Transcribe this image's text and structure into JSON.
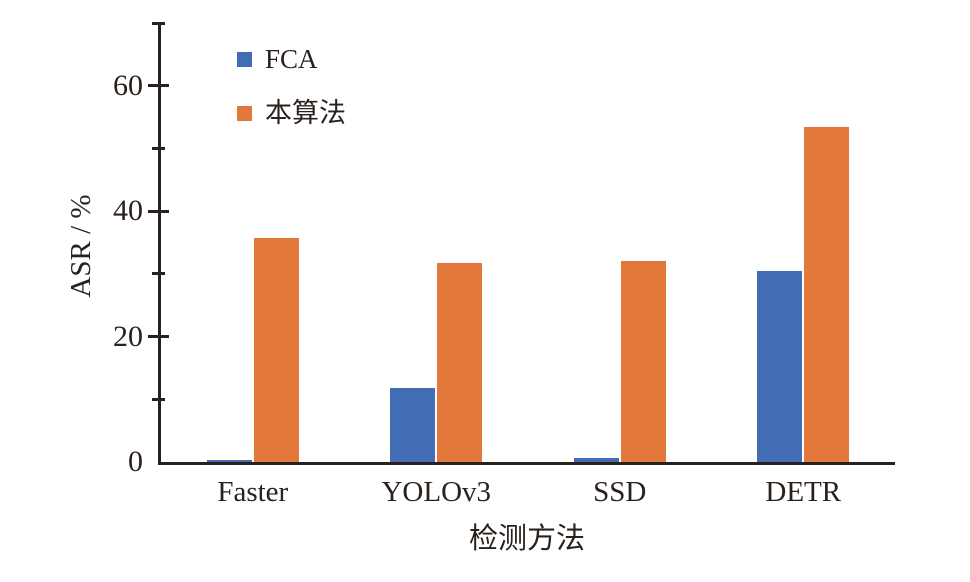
{
  "chart_data": {
    "type": "bar",
    "title": "",
    "categories": [
      "Faster",
      "YOLOv3",
      "SSD",
      "DETR"
    ],
    "series": [
      {
        "name": "FCA",
        "color": "#426CB4",
        "values": [
          0.3,
          11.8,
          0.6,
          30.4
        ]
      },
      {
        "name": "本算法",
        "color": "#E2793A",
        "values": [
          35.8,
          31.7,
          32.0,
          53.4
        ]
      }
    ],
    "xlabel": "检测方法",
    "ylabel": "ASR / %",
    "ylim": [
      0,
      70.2
    ],
    "yticks": [
      0,
      20,
      40,
      60
    ],
    "yminorticks": [
      10,
      30,
      50,
      70
    ],
    "grid": false,
    "legend_position": "top-left-inside",
    "axis_color": "#2a211c",
    "background_color": "#ffffff"
  }
}
